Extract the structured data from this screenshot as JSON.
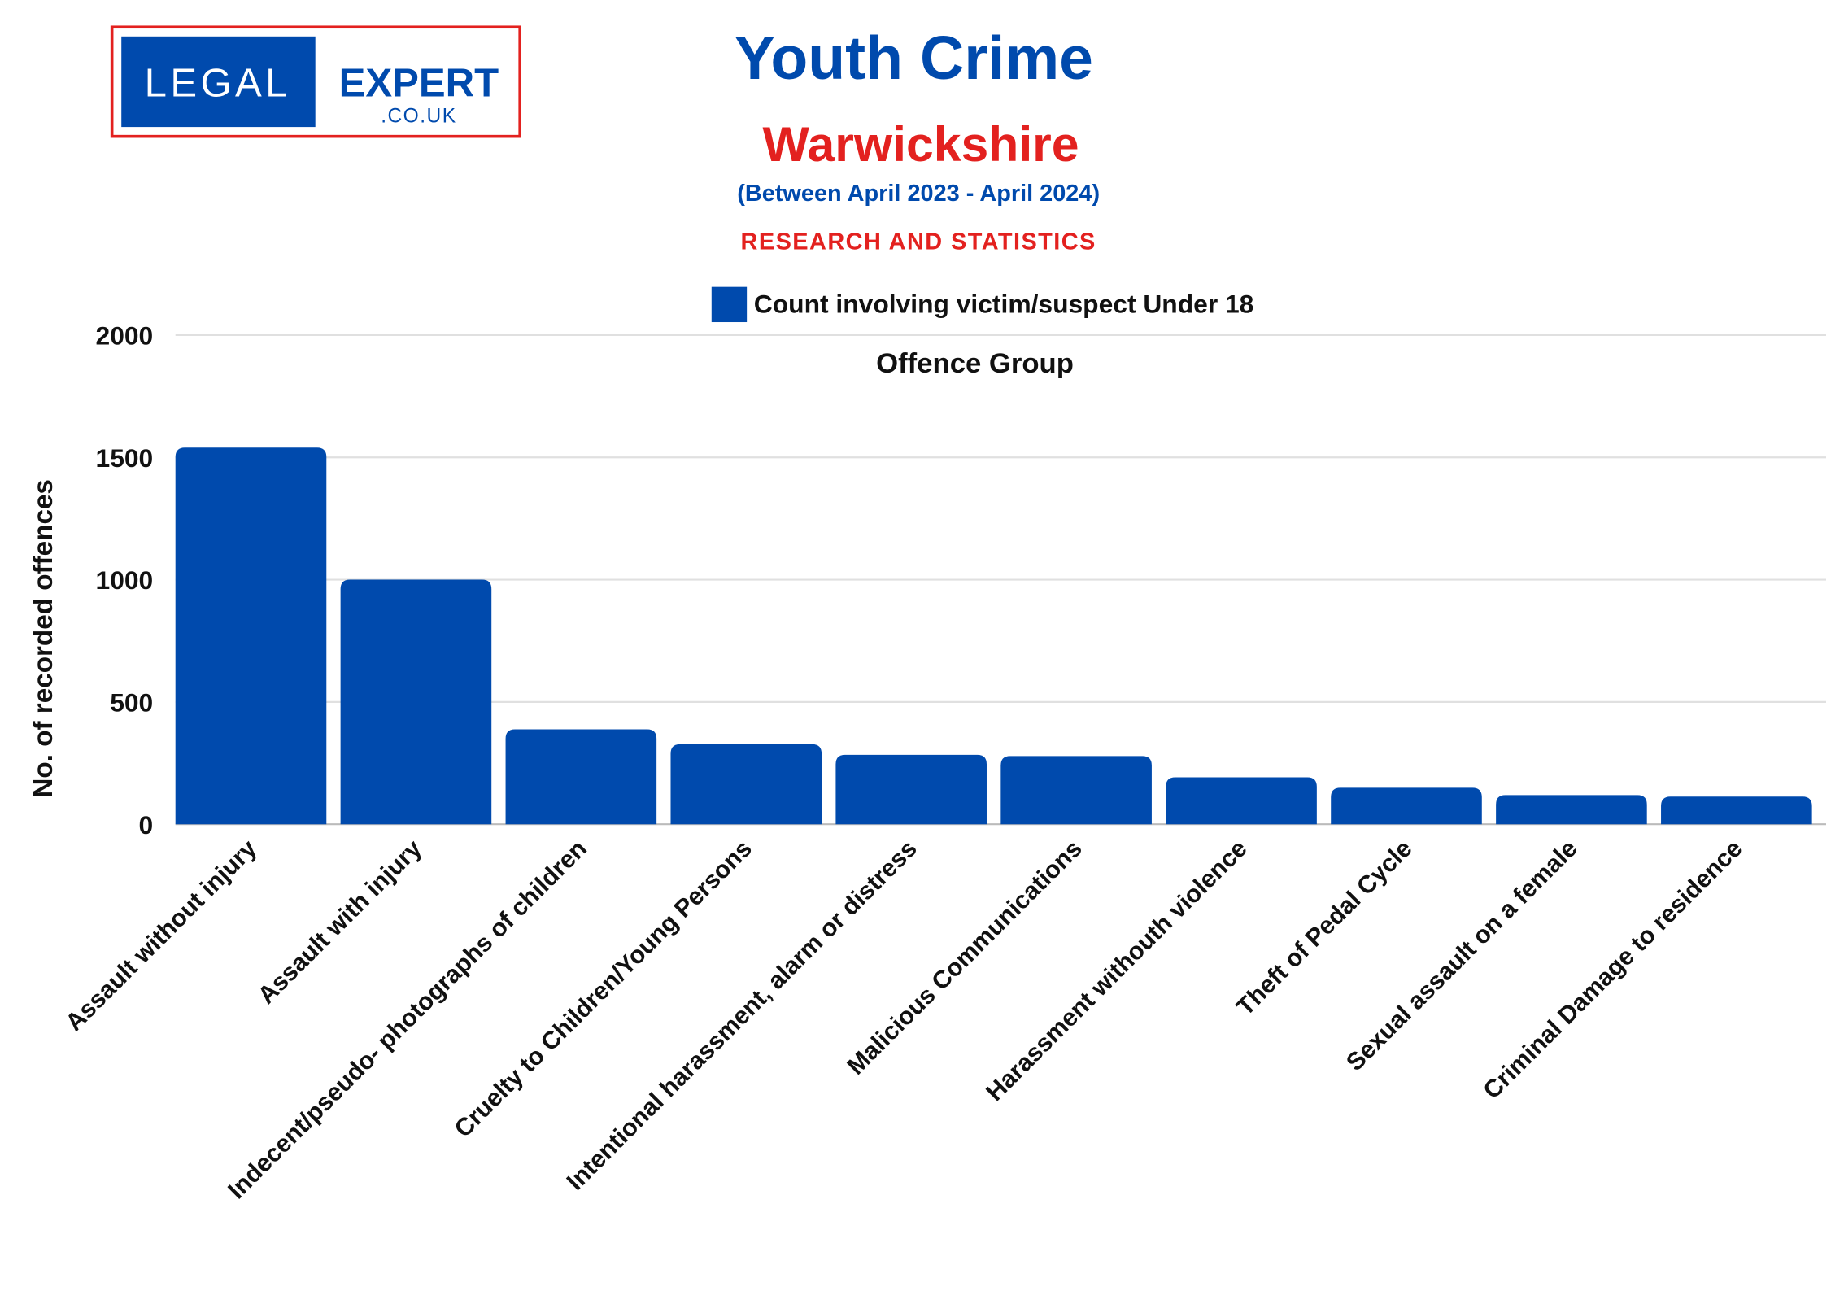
{
  "logo": {
    "left": "LEGAL",
    "right": "EXPERT",
    "sub": ".CO.UK"
  },
  "header": {
    "title": "Youth Crime",
    "region": "Warwickshire",
    "period": "(Between April 2023 - April 2024)",
    "tagline": "RESEARCH AND STATISTICS"
  },
  "colors": {
    "bar": "#004aad",
    "title": "#004aad",
    "accent": "#e3211f",
    "grid": "#e0e0e0"
  },
  "chart_data": {
    "type": "bar",
    "title": "Offence Group",
    "xlabel": "",
    "ylabel": "No. of recorded offences",
    "ylim": [
      0,
      2000
    ],
    "yticks": [
      "0",
      "500",
      "1000",
      "1500",
      "2000"
    ],
    "grid": true,
    "legend": {
      "position": "top-center",
      "entries": [
        "Count involving victim/suspect Under 18"
      ]
    },
    "categories": [
      "Assault without injury",
      "Assault with injury",
      "Indecent/pseudo- photographs of children",
      "Cruelty to Children/Young Persons",
      "Intentional harassment, alarm or distress",
      "Malicious Communications",
      "Harassment withouth violence",
      "Theft of Pedal Cycle",
      "Sexual assault on a female",
      "Criminal Damage to residence"
    ],
    "series": [
      {
        "name": "Count involving victim/suspect Under 18",
        "values": [
          1540,
          1000,
          388,
          327,
          284,
          279,
          192,
          149,
          119,
          113
        ]
      }
    ]
  }
}
